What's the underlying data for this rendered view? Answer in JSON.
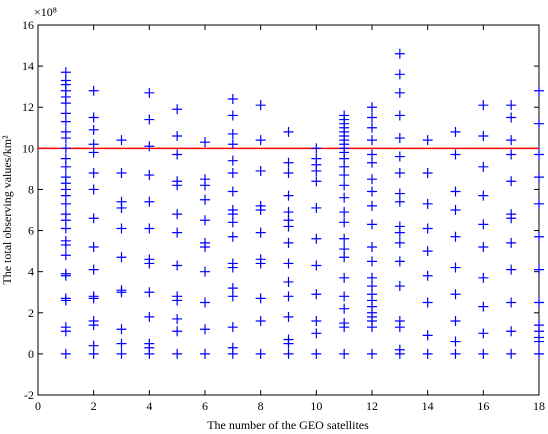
{
  "chart_data": {
    "type": "scatter",
    "title": "",
    "xlabel": "The number of the GEO satellites",
    "ylabel": "The total observing values/km²",
    "y_scale_label": "×10⁸",
    "xlim": [
      0,
      18
    ],
    "ylim": [
      -2,
      16
    ],
    "x_ticks": [
      "0",
      "2",
      "4",
      "6",
      "8",
      "10",
      "12",
      "14",
      "16",
      "18"
    ],
    "y_ticks": [
      "-2",
      "0",
      "2",
      "4",
      "6",
      "8",
      "10",
      "12",
      "14",
      "16"
    ],
    "grid": false,
    "legend": "none",
    "marker": "plus",
    "marker_color": "#0000ff",
    "threshold": {
      "y": 10,
      "color": "#ff0000"
    },
    "points_by_x": [
      {
        "x": 1,
        "y": [
          0,
          1.1,
          1.3,
          2.6,
          2.7,
          3.8,
          3.9,
          4.8,
          5.3,
          5.5,
          6.1,
          6.5,
          6.8,
          7.3,
          7.7,
          8.0,
          8.3,
          8.6,
          9.1,
          9.5,
          10.0,
          10.5,
          10.8,
          11.3,
          11.7,
          12.2,
          12.5,
          12.8,
          13.1,
          13.3,
          13.7
        ]
      },
      {
        "x": 2,
        "y": [
          0,
          0.4,
          1.4,
          1.6,
          2.7,
          2.8,
          4.1,
          5.2,
          6.6,
          8.0,
          8.8,
          9.8,
          10.2,
          10.9,
          11.5,
          12.8
        ]
      },
      {
        "x": 3,
        "y": [
          0,
          0.5,
          1.2,
          3.0,
          3.1,
          4.7,
          6.1,
          7.1,
          7.4,
          8.8,
          10.4
        ]
      },
      {
        "x": 4,
        "y": [
          0,
          0.3,
          0.5,
          1.8,
          3.0,
          4.4,
          4.6,
          6.1,
          7.4,
          8.7,
          10.1,
          11.4,
          12.7
        ]
      },
      {
        "x": 5,
        "y": [
          0,
          1.1,
          1.7,
          2.6,
          2.8,
          4.3,
          5.9,
          6.8,
          8.2,
          8.4,
          9.7,
          10.6,
          11.9
        ]
      },
      {
        "x": 6,
        "y": [
          0,
          1.2,
          2.5,
          4.0,
          5.2,
          5.4,
          6.5,
          7.5,
          8.2,
          8.5,
          10.3
        ]
      },
      {
        "x": 7,
        "y": [
          0,
          0.3,
          1.3,
          2.8,
          3.2,
          4.2,
          4.4,
          5.7,
          6.4,
          6.8,
          7.0,
          7.9,
          8.8,
          9.4,
          10.2,
          10.7,
          11.6,
          12.4
        ]
      },
      {
        "x": 8,
        "y": [
          0,
          1.6,
          2.7,
          4.4,
          4.6,
          5.9,
          7.0,
          7.2,
          8.9,
          10.4,
          12.1
        ]
      },
      {
        "x": 9,
        "y": [
          0,
          0.5,
          0.7,
          1.8,
          2.8,
          3.5,
          4.4,
          5.4,
          6.2,
          6.5,
          6.9,
          7.7,
          8.8,
          9.3,
          10.8
        ]
      },
      {
        "x": 10,
        "y": [
          0,
          1.0,
          1.6,
          2.9,
          4.3,
          5.6,
          7.1,
          8.4,
          8.9,
          9.2,
          9.5,
          10.0
        ]
      },
      {
        "x": 11,
        "y": [
          0,
          1.3,
          1.5,
          2.2,
          2.8,
          3.7,
          4.7,
          5.1,
          5.6,
          6.4,
          6.9,
          7.6,
          8.2,
          8.7,
          9.1,
          9.5,
          9.8,
          10.0,
          10.2,
          10.4,
          10.6,
          10.8,
          11.0,
          11.2,
          11.4,
          11.6
        ]
      },
      {
        "x": 12,
        "y": [
          0,
          1.3,
          1.6,
          1.8,
          2.0,
          2.3,
          2.6,
          2.9,
          3.3,
          3.7,
          4.5,
          5.2,
          6.3,
          7.2,
          7.9,
          8.5,
          9.3,
          9.7,
          10.4,
          11.0,
          11.5,
          12.0
        ]
      },
      {
        "x": 13,
        "y": [
          0,
          0.2,
          1.3,
          1.6,
          3.3,
          4.5,
          5.4,
          5.9,
          6.2,
          7.4,
          7.8,
          8.8,
          9.6,
          10.5,
          11.6,
          12.7,
          13.6,
          14.6
        ]
      },
      {
        "x": 14,
        "y": [
          0,
          0.9,
          2.5,
          3.8,
          5.0,
          6.1,
          7.3,
          8.8,
          10.4
        ]
      },
      {
        "x": 15,
        "y": [
          0,
          0.6,
          1.6,
          2.9,
          4.2,
          5.7,
          7.0,
          7.9,
          9.7,
          10.8
        ]
      },
      {
        "x": 16,
        "y": [
          0,
          1.0,
          2.3,
          3.7,
          5.2,
          6.3,
          7.7,
          9.1,
          10.6,
          12.1
        ]
      },
      {
        "x": 17,
        "y": [
          0,
          1.1,
          2.5,
          4.1,
          5.4,
          6.6,
          6.8,
          8.4,
          9.7,
          10.4,
          11.5,
          12.1
        ]
      },
      {
        "x": 18,
        "y": [
          0,
          0.6,
          0.8,
          1.1,
          1.4,
          2.5,
          4.1,
          5.7,
          7.3,
          8.6,
          9.7,
          11.2,
          12.8
        ]
      }
    ]
  }
}
